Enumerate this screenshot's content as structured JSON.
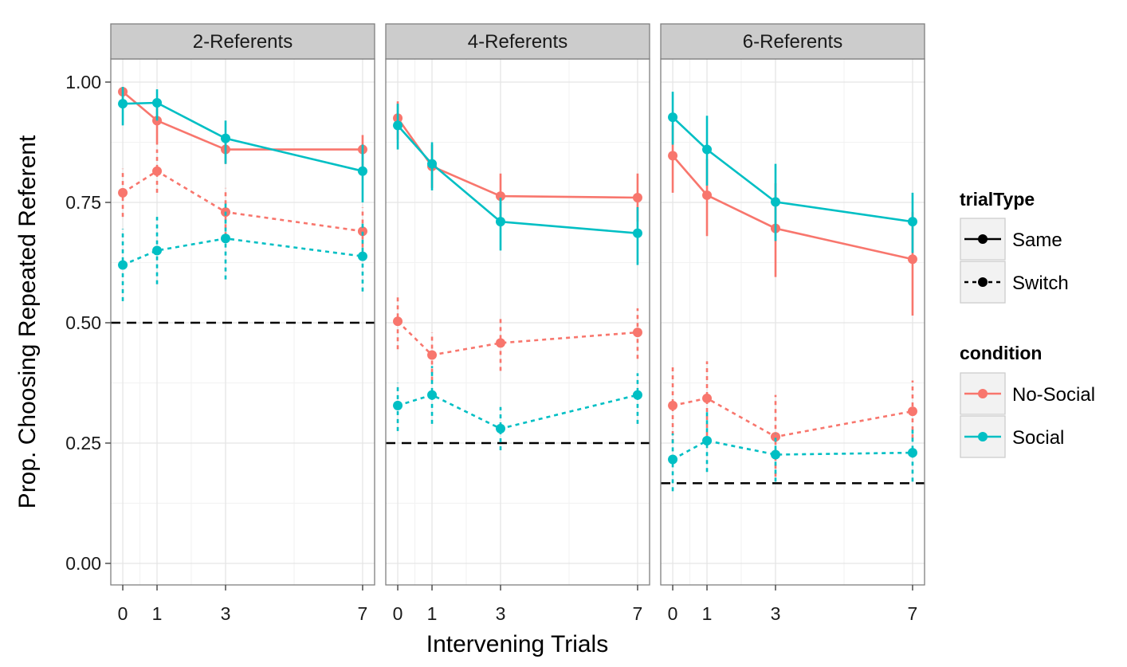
{
  "chart_data": {
    "type": "line",
    "ylabel": "Prop. Choosing Repeated Referent",
    "xlabel": "Intervening Trials",
    "ylim": [
      -0.05,
      1.05
    ],
    "y_ticks": [
      0.0,
      0.25,
      0.5,
      0.75,
      1.0
    ],
    "y_tick_labels": [
      "0.00",
      "0.25",
      "0.50",
      "0.75",
      "1.00"
    ],
    "xlim": [
      -0.35,
      7.35
    ],
    "x_ticks": [
      0,
      1,
      3,
      7
    ],
    "x_tick_labels": [
      "0",
      "1",
      "3",
      "7"
    ],
    "grid": true,
    "colors": {
      "No-Social": "#F8766D",
      "Social": "#00BFC4",
      "chance": "#000000",
      "strip": "#CCCCCC",
      "frame": "#7F7F7F"
    },
    "legend": {
      "placement": "right",
      "groups": [
        {
          "title": "trialType",
          "entries": [
            {
              "label": "Same",
              "linetype": "solid"
            },
            {
              "label": "Switch",
              "linetype": "dashed"
            }
          ]
        },
        {
          "title": "condition",
          "entries": [
            {
              "label": "No-Social",
              "color": "#F8766D"
            },
            {
              "label": "Social",
              "color": "#00BFC4"
            }
          ]
        }
      ]
    },
    "panels": [
      {
        "title": "2-Referents",
        "chance_level": 0.5,
        "series": [
          {
            "condition": "No-Social",
            "trialType": "Same",
            "x": [
              0,
              1,
              3,
              7
            ],
            "y": [
              0.98,
              0.92,
              0.86,
              0.86
            ],
            "ymin": [
              0.96,
              0.87,
              0.83,
              0.82
            ],
            "ymax": [
              0.99,
              0.96,
              0.89,
              0.89
            ]
          },
          {
            "condition": "Social",
            "trialType": "Same",
            "x": [
              0,
              1,
              3,
              7
            ],
            "y": [
              0.955,
              0.957,
              0.883,
              0.815
            ],
            "ymin": [
              0.91,
              0.92,
              0.83,
              0.75
            ],
            "ymax": [
              0.99,
              0.985,
              0.92,
              0.87
            ]
          },
          {
            "condition": "No-Social",
            "trialType": "Switch",
            "x": [
              0,
              1,
              3,
              7
            ],
            "y": [
              0.77,
              0.815,
              0.73,
              0.69
            ],
            "ymin": [
              0.72,
              0.77,
              0.68,
              0.64
            ],
            "ymax": [
              0.82,
              0.86,
              0.78,
              0.74
            ]
          },
          {
            "condition": "Social",
            "trialType": "Switch",
            "x": [
              0,
              1,
              3,
              7
            ],
            "y": [
              0.62,
              0.65,
              0.675,
              0.638
            ],
            "ymin": [
              0.545,
              0.58,
              0.59,
              0.565
            ],
            "ymax": [
              0.695,
              0.72,
              0.75,
              0.71
            ]
          }
        ]
      },
      {
        "title": "4-Referents",
        "chance_level": 0.25,
        "series": [
          {
            "condition": "No-Social",
            "trialType": "Same",
            "x": [
              0,
              1,
              3,
              7
            ],
            "y": [
              0.925,
              0.825,
              0.763,
              0.76
            ],
            "ymin": [
              0.88,
              0.78,
              0.71,
              0.71
            ],
            "ymax": [
              0.96,
              0.87,
              0.81,
              0.81
            ]
          },
          {
            "condition": "Social",
            "trialType": "Same",
            "x": [
              0,
              1,
              3,
              7
            ],
            "y": [
              0.91,
              0.83,
              0.71,
              0.686
            ],
            "ymin": [
              0.86,
              0.775,
              0.65,
              0.62
            ],
            "ymax": [
              0.955,
              0.875,
              0.76,
              0.74
            ]
          },
          {
            "condition": "No-Social",
            "trialType": "Switch",
            "x": [
              0,
              1,
              3,
              7
            ],
            "y": [
              0.503,
              0.433,
              0.458,
              0.48
            ],
            "ymin": [
              0.445,
              0.38,
              0.4,
              0.425
            ],
            "ymax": [
              0.555,
              0.48,
              0.51,
              0.53
            ]
          },
          {
            "condition": "Social",
            "trialType": "Switch",
            "x": [
              0,
              1,
              3,
              7
            ],
            "y": [
              0.328,
              0.35,
              0.28,
              0.35
            ],
            "ymin": [
              0.275,
              0.29,
              0.235,
              0.29
            ],
            "ymax": [
              0.375,
              0.41,
              0.325,
              0.395
            ]
          }
        ]
      },
      {
        "title": "6-Referents",
        "chance_level": 0.1667,
        "series": [
          {
            "condition": "No-Social",
            "trialType": "Same",
            "x": [
              0,
              1,
              3,
              7
            ],
            "y": [
              0.847,
              0.765,
              0.696,
              0.632
            ],
            "ymin": [
              0.77,
              0.68,
              0.595,
              0.515
            ],
            "ymax": [
              0.91,
              0.84,
              0.79,
              0.73
            ]
          },
          {
            "condition": "Social",
            "trialType": "Same",
            "x": [
              0,
              1,
              3,
              7
            ],
            "y": [
              0.927,
              0.86,
              0.751,
              0.71
            ],
            "ymin": [
              0.87,
              0.785,
              0.67,
              0.645
            ],
            "ymax": [
              0.98,
              0.93,
              0.83,
              0.77
            ]
          },
          {
            "condition": "No-Social",
            "trialType": "Switch",
            "x": [
              0,
              1,
              3,
              7
            ],
            "y": [
              0.328,
              0.343,
              0.263,
              0.316
            ],
            "ymin": [
              0.25,
              0.265,
              0.18,
              0.26
            ],
            "ymax": [
              0.415,
              0.42,
              0.35,
              0.38
            ]
          },
          {
            "condition": "Social",
            "trialType": "Switch",
            "x": [
              0,
              1,
              3,
              7
            ],
            "y": [
              0.216,
              0.255,
              0.226,
              0.23
            ],
            "ymin": [
              0.15,
              0.19,
              0.17,
              0.17
            ],
            "ymax": [
              0.27,
              0.32,
              0.27,
              0.285
            ]
          }
        ]
      }
    ]
  }
}
